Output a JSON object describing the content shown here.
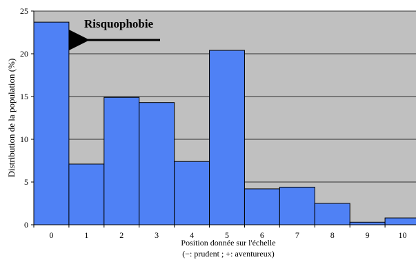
{
  "chart_data": {
    "type": "bar",
    "categories": [
      "0",
      "1",
      "2",
      "3",
      "4",
      "5",
      "6",
      "7",
      "8",
      "9",
      "10"
    ],
    "values": [
      23.7,
      7.1,
      14.9,
      14.3,
      7.4,
      20.4,
      4.2,
      4.4,
      2.5,
      0.3,
      0.8
    ],
    "xlabel_line1": "Position donnée sur l'échelle",
    "xlabel_line2": "(−: prudent ; +: aventureux)",
    "ylabel": "Distribution de la population (%)",
    "ylim": [
      0,
      25
    ],
    "yticks": [
      0,
      5,
      10,
      15,
      20,
      25
    ],
    "grid": true,
    "annotation": "Risquophobie",
    "colors": {
      "bar": "#4f81f5",
      "plot_bg": "#c0c0c0",
      "gridline": "#000000"
    }
  }
}
